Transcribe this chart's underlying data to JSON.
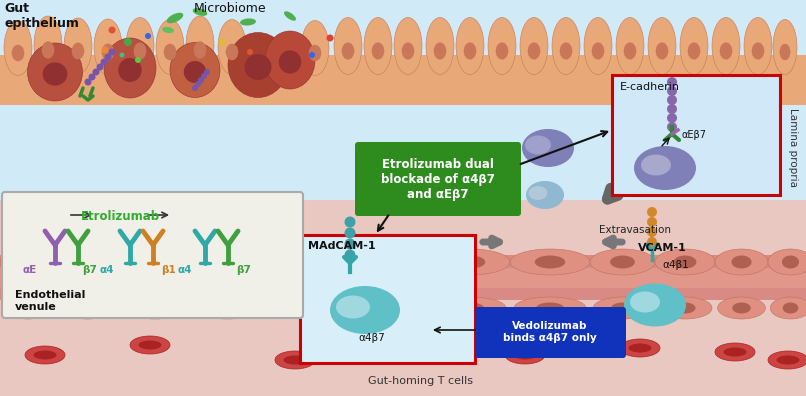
{
  "fig_width": 8.06,
  "fig_height": 3.96,
  "dpi": 100,
  "bg_color": "#c8e4f4",
  "lamina_propria_label": "Lamina propria",
  "extravasation_label": "Extravasation",
  "endothelial_venule_label": "Endothelial\nvenule",
  "gut_homing_label": "Gut-homing T cells",
  "etrolizumab_box_label": "Etrolizumab dual\nblockade of α4β7\nand αEβ7",
  "etrolizumab_box_color": "#2e8b1e",
  "ecadherin_label": "E-cadherin",
  "aEb7_label": "αEβ7",
  "MAdCAM_label": "MAdCAM-1",
  "a4b7_label": "α4β7",
  "vedolizumab_label": "Vedolizumab\nbinds α4β7 only",
  "vedolizumab_bg": "#1133bb",
  "VCAM_label": "VCAM-1",
  "a4b1_label": "α4β1",
  "etrolizumab_inset_label": "Etrolizumab",
  "aE_label": "αE",
  "b7_label1": "β7",
  "a4_label1": "α4",
  "b1_label": "β1",
  "a4_label2": "α4",
  "b7_label2": "β7",
  "gut_epithelium_label": "Gut\nepithelium",
  "microbiome_label": "Microbiome",
  "integrin_green": "#40a040",
  "integrin_purple": "#9060b0",
  "integrin_teal": "#30a8a8",
  "integrin_orange": "#d08020",
  "villi_color": "#e8a878",
  "villi_dark": "#c87858",
  "endo_color": "#e09080",
  "endo_dark": "#c07060",
  "rbc_color": "#cc4444",
  "cell_purple": "#8080b8",
  "cell_blue": "#90b8d0",
  "cell_teal": "#60c0c8",
  "bead_purple": "#8866aa",
  "bead_teal": "#40a0a8",
  "bead_orange": "#d08828"
}
